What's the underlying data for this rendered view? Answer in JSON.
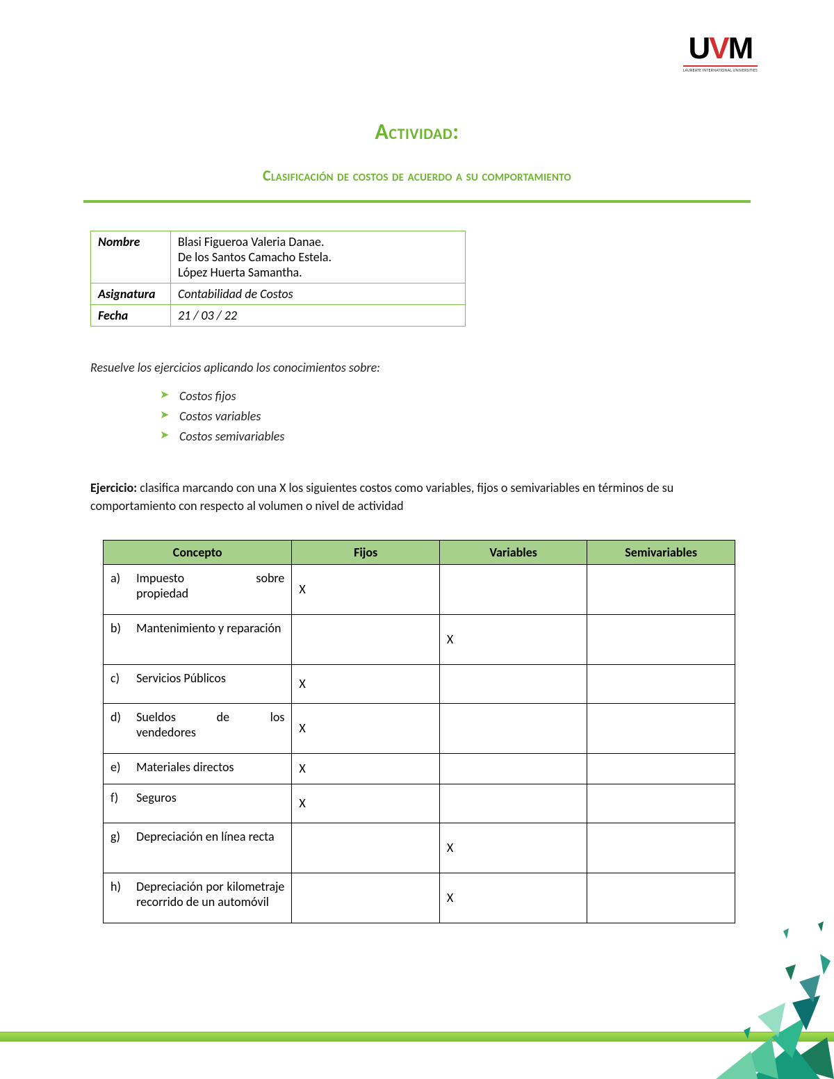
{
  "logo": {
    "text_u": "U",
    "text_v": "V",
    "text_m": "M",
    "sub": "LAUREATE INTERNATIONAL UNIVERSITIES"
  },
  "titles": {
    "main": "Actividad:",
    "sub": "Clasificación de costos de acuerdo a su comportamiento"
  },
  "info": {
    "name_label": "Nombre",
    "names": [
      "Blasi Figueroa Valeria Danae.",
      "De los Santos Camacho Estela.",
      "López Huerta Samantha."
    ],
    "subject_label": "Asignatura",
    "subject": "Contabilidad de Costos",
    "date_label": "Fecha",
    "date": "21 / 03 / 22"
  },
  "instructions": {
    "lead": "Resuelve los ejercicios aplicando los conocimientos sobre:",
    "items": [
      "Costos fijos",
      "Costos variables",
      "Costos semivariables"
    ]
  },
  "exercise": {
    "bold": "Ejercicio:",
    "text": " clasifica marcando con una X los siguientes costos como variables, fijos o semivariables en términos de su comportamiento con respecto al volumen o nivel de actividad"
  },
  "class_table": {
    "headers": {
      "concepto": "Concepto",
      "fijos": "Fijos",
      "variables": "Variables",
      "semi": "Semivariables"
    },
    "rows": [
      {
        "letter": "a)",
        "concept_parts": [
          "Impuesto",
          "sobre"
        ],
        "concept_line2": "propiedad",
        "fijos": "X",
        "variables": "",
        "semi": "",
        "h": "tall"
      },
      {
        "letter": "b)",
        "concept_plain": "Mantenimiento y reparación",
        "fijos": "",
        "variables": "X",
        "semi": "",
        "h": "tall"
      },
      {
        "letter": "c)",
        "concept_plain": "Servicios Públicos",
        "fijos": "X",
        "variables": "",
        "semi": "",
        "h": "med"
      },
      {
        "letter": "d)",
        "concept_parts": [
          "Sueldos",
          "de",
          "los"
        ],
        "concept_line2": "vendedores",
        "fijos": "X",
        "variables": "",
        "semi": "",
        "h": "tall"
      },
      {
        "letter": "e)",
        "concept_plain": "Materiales directos",
        "fijos": "X",
        "variables": "",
        "semi": "",
        "h": "short"
      },
      {
        "letter": "f)",
        "concept_plain": "Seguros",
        "fijos": "X",
        "variables": "",
        "semi": "",
        "h": "med"
      },
      {
        "letter": "g)",
        "concept_plain": "Depreciación en línea recta",
        "fijos": "",
        "variables": "X",
        "semi": "",
        "h": "tall"
      },
      {
        "letter": "h)",
        "concept_plain": "Depreciación por kilometraje recorrido de un automóvil",
        "fijos": "",
        "variables": "X",
        "semi": "",
        "h": "tall"
      }
    ]
  },
  "colors": {
    "accent": "#6eb52f",
    "accent_light": "#7cc142",
    "header_bg": "#a8d08d",
    "red": "#d32f2f"
  }
}
